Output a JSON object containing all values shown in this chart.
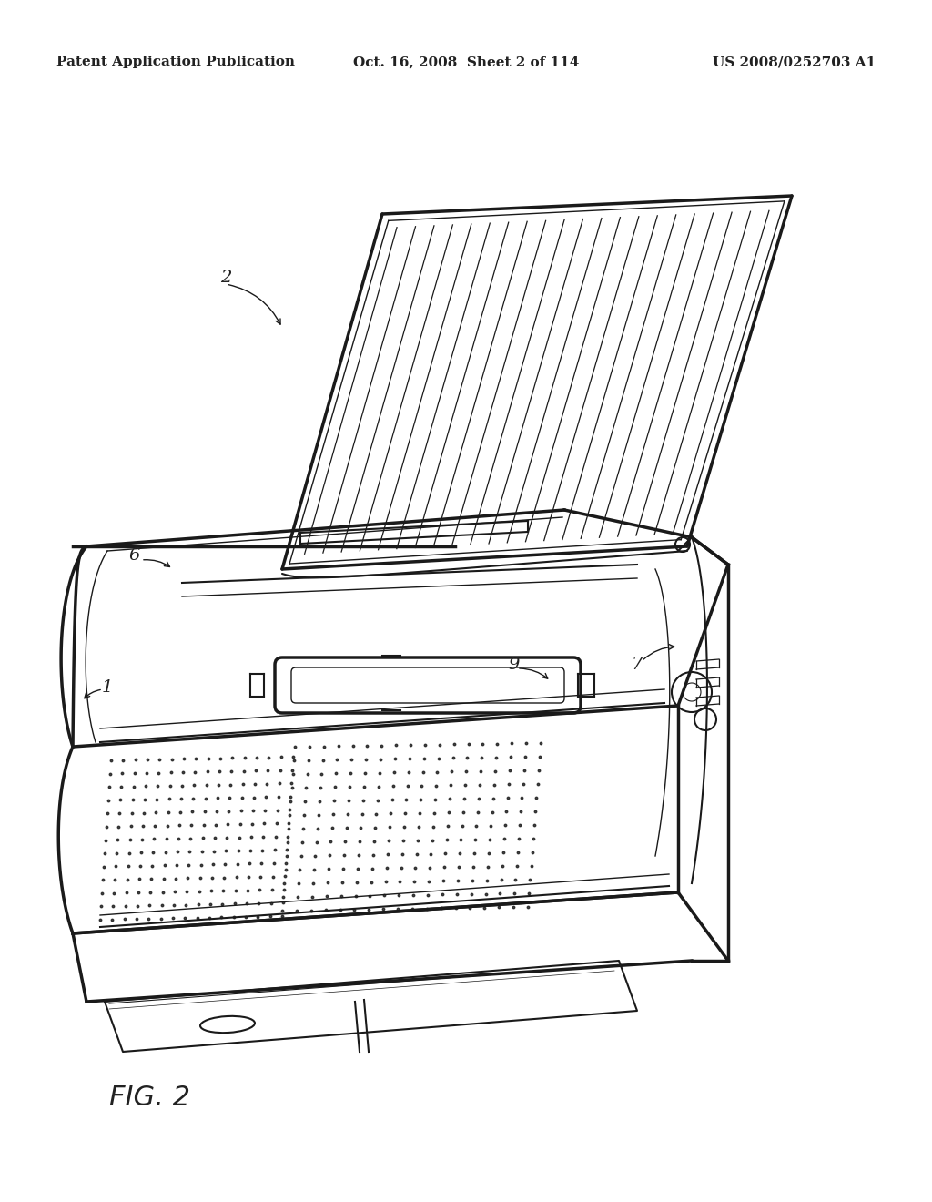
{
  "background_color": "#ffffff",
  "header_left": "Patent Application Publication",
  "header_center": "Oct. 16, 2008  Sheet 2 of 114",
  "header_right": "US 2008/0252703 A1",
  "figure_label": "FIG. 2",
  "line_color": "#1a1a1a",
  "label_color": "#222222",
  "header_fontsize": 11,
  "label_fontsize": 14,
  "fig_label_fontsize": 22
}
